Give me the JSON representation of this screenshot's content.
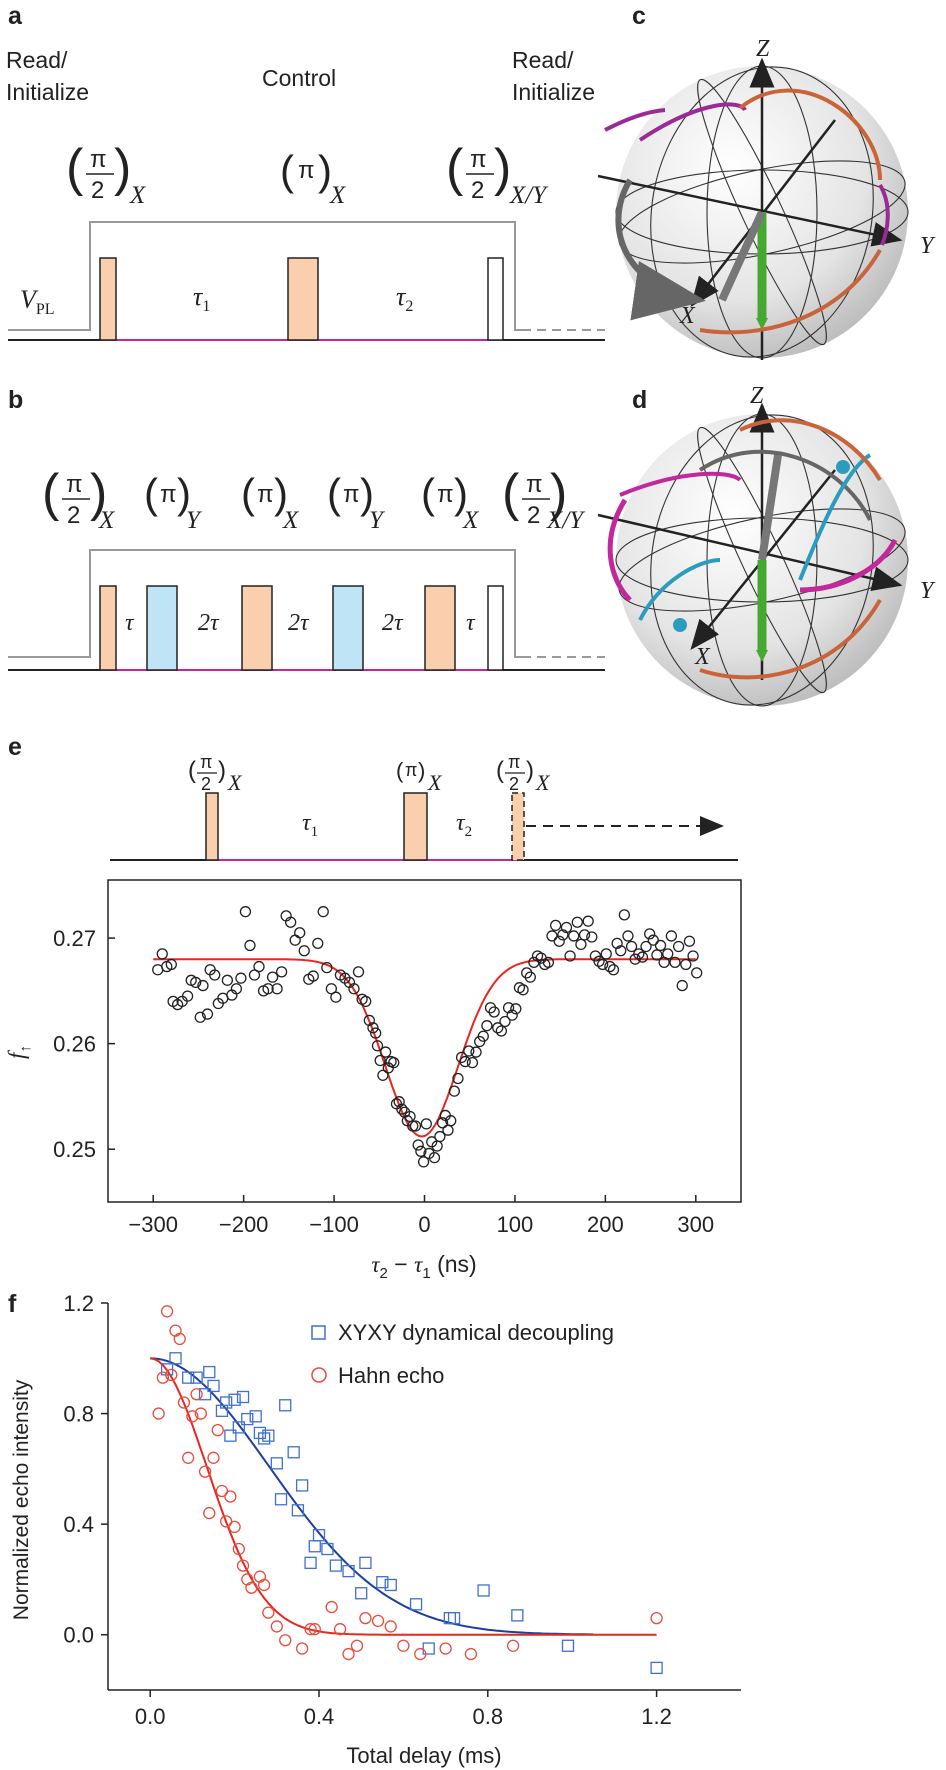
{
  "panels": {
    "a": "a",
    "b": "b",
    "c": "c",
    "d": "d",
    "e": "e",
    "f": "f"
  },
  "colors": {
    "pulse_x": "#f9cfae",
    "pulse_y": "#bfe4f5",
    "magenta": "#c2279c",
    "gray_line": "#999999",
    "fit_red": "#e8271f",
    "fit_blue": "#1c3f9f",
    "marker_blue": "#3f6fd0",
    "marker_red": "#e84c3c",
    "green": "#46a832",
    "orange": "#c9643a",
    "teal": "#2a9dbf",
    "purple": "#9a2a96"
  },
  "panel_a": {
    "read_left": [
      "Read/",
      "Initialize"
    ],
    "control": "Control",
    "read_right": [
      "Read/",
      "Initialize"
    ],
    "vpl": "V",
    "vpl_sub": "PL",
    "pulses": [
      {
        "num": "π",
        "den": "2",
        "axis": "X"
      },
      {
        "num": "π",
        "den": "",
        "axis": "X"
      },
      {
        "num": "π",
        "den": "2",
        "axis": "X/Y"
      }
    ],
    "tau1": "τ",
    "tau1_sub": "1",
    "tau2": "τ",
    "tau2_sub": "2"
  },
  "panel_b": {
    "pulses": [
      {
        "num": "π",
        "den": "2",
        "axis": "X"
      },
      {
        "num": "π",
        "den": "",
        "axis": "Y"
      },
      {
        "num": "π",
        "den": "",
        "axis": "X"
      },
      {
        "num": "π",
        "den": "",
        "axis": "Y"
      },
      {
        "num": "π",
        "den": "",
        "axis": "X"
      },
      {
        "num": "π",
        "den": "2",
        "axis": "X/Y"
      }
    ],
    "gaps": [
      "τ",
      "2τ",
      "2τ",
      "2τ",
      "τ"
    ]
  },
  "sphere": {
    "z": "Z",
    "y": "Y",
    "x": "X"
  },
  "panel_e": {
    "pulses": [
      {
        "num": "π",
        "den": "2",
        "axis": "X"
      },
      {
        "num": "π",
        "den": "",
        "axis": "X"
      },
      {
        "num": "π",
        "den": "2",
        "axis": "X"
      }
    ],
    "tau1": "τ",
    "tau1_sub": "1",
    "tau2": "τ",
    "tau2_sub": "2"
  },
  "chart_data": [
    {
      "id": "e",
      "type": "scatter",
      "xlabel": "τ2 − τ1 (ns)",
      "ylabel": "f↑",
      "xlim": [
        -350,
        350
      ],
      "ylim": [
        0.245,
        0.2755
      ],
      "xticks": [
        -300,
        -200,
        -100,
        0,
        100,
        200,
        300
      ],
      "xtick_labels": [
        "−300",
        "−200",
        "−100",
        "0",
        "100",
        "200",
        "300"
      ],
      "yticks": [
        0.25,
        0.26,
        0.27
      ],
      "ytick_labels": [
        "0.25",
        "0.26",
        "0.27"
      ],
      "points": [
        [
          -295,
          0.267
        ],
        [
          -290,
          0.2685
        ],
        [
          -285,
          0.2673
        ],
        [
          -280,
          0.2675
        ],
        [
          -278,
          0.264
        ],
        [
          -273,
          0.2637
        ],
        [
          -268,
          0.264
        ],
        [
          -262,
          0.2645
        ],
        [
          -258,
          0.266
        ],
        [
          -253,
          0.2658
        ],
        [
          -248,
          0.2625
        ],
        [
          -245,
          0.2655
        ],
        [
          -240,
          0.2628
        ],
        [
          -237,
          0.267
        ],
        [
          -232,
          0.2665
        ],
        [
          -228,
          0.2638
        ],
        [
          -223,
          0.2643
        ],
        [
          -218,
          0.266
        ],
        [
          -213,
          0.2646
        ],
        [
          -208,
          0.2652
        ],
        [
          -203,
          0.2662
        ],
        [
          -198,
          0.2725
        ],
        [
          -193,
          0.2693
        ],
        [
          -188,
          0.2665
        ],
        [
          -183,
          0.2673
        ],
        [
          -178,
          0.265
        ],
        [
          -173,
          0.2652
        ],
        [
          -168,
          0.2663
        ],
        [
          -163,
          0.2652
        ],
        [
          -158,
          0.2668
        ],
        [
          -153,
          0.2721
        ],
        [
          -148,
          0.2715
        ],
        [
          -143,
          0.2698
        ],
        [
          -138,
          0.2705
        ],
        [
          -133,
          0.2688
        ],
        [
          -128,
          0.2661
        ],
        [
          -123,
          0.2664
        ],
        [
          -118,
          0.2695
        ],
        [
          -112,
          0.2725
        ],
        [
          -108,
          0.2672
        ],
        [
          -103,
          0.2652
        ],
        [
          -98,
          0.2644
        ],
        [
          -93,
          0.2665
        ],
        [
          -88,
          0.2662
        ],
        [
          -83,
          0.2658
        ],
        [
          -78,
          0.2652
        ],
        [
          -73,
          0.2668
        ],
        [
          -69,
          0.2642
        ],
        [
          -65,
          0.264
        ],
        [
          -61,
          0.2622
        ],
        [
          -57,
          0.2615
        ],
        [
          -54,
          0.261
        ],
        [
          -52,
          0.2598
        ],
        [
          -49,
          0.2584
        ],
        [
          -46,
          0.257
        ],
        [
          -43,
          0.2592
        ],
        [
          -40,
          0.2577
        ],
        [
          -37,
          0.2583
        ],
        [
          -34,
          0.2582
        ],
        [
          -31,
          0.2543
        ],
        [
          -28,
          0.2545
        ],
        [
          -25,
          0.2538
        ],
        [
          -22,
          0.2535
        ],
        [
          -19,
          0.2527
        ],
        [
          -16,
          0.2531
        ],
        [
          -13,
          0.2522
        ],
        [
          -10,
          0.2522
        ],
        [
          -7,
          0.2504
        ],
        [
          -4,
          0.2498
        ],
        [
          -1,
          0.2488
        ],
        [
          2,
          0.2524
        ],
        [
          5,
          0.2496
        ],
        [
          8,
          0.2507
        ],
        [
          11,
          0.2492
        ],
        [
          14,
          0.2503
        ],
        [
          17,
          0.2512
        ],
        [
          20,
          0.2525
        ],
        [
          23,
          0.2532
        ],
        [
          26,
          0.2518
        ],
        [
          29,
          0.2527
        ],
        [
          33,
          0.2555
        ],
        [
          37,
          0.2567
        ],
        [
          41,
          0.2587
        ],
        [
          45,
          0.2583
        ],
        [
          49,
          0.2593
        ],
        [
          53,
          0.2582
        ],
        [
          57,
          0.2592
        ],
        [
          61,
          0.2602
        ],
        [
          65,
          0.2607
        ],
        [
          69,
          0.2617
        ],
        [
          73,
          0.2634
        ],
        [
          77,
          0.263
        ],
        [
          81,
          0.2615
        ],
        [
          85,
          0.2612
        ],
        [
          89,
          0.2621
        ],
        [
          93,
          0.2634
        ],
        [
          97,
          0.2627
        ],
        [
          101,
          0.2633
        ],
        [
          105,
          0.2653
        ],
        [
          109,
          0.2651
        ],
        [
          113,
          0.2667
        ],
        [
          117,
          0.2663
        ],
        [
          121,
          0.2677
        ],
        [
          125,
          0.2683
        ],
        [
          129,
          0.2681
        ],
        [
          133,
          0.2675
        ],
        [
          137,
          0.2677
        ],
        [
          141,
          0.2702
        ],
        [
          145,
          0.2712
        ],
        [
          149,
          0.2697
        ],
        [
          153,
          0.2703
        ],
        [
          157,
          0.271
        ],
        [
          161,
          0.2683
        ],
        [
          165,
          0.2702
        ],
        [
          169,
          0.2715
        ],
        [
          173,
          0.2694
        ],
        [
          177,
          0.2703
        ],
        [
          181,
          0.2716
        ],
        [
          185,
          0.2701
        ],
        [
          189,
          0.2683
        ],
        [
          193,
          0.2678
        ],
        [
          197,
          0.2675
        ],
        [
          201,
          0.2685
        ],
        [
          205,
          0.2673
        ],
        [
          209,
          0.267
        ],
        [
          213,
          0.2695
        ],
        [
          217,
          0.2688
        ],
        [
          221,
          0.2722
        ],
        [
          225,
          0.2702
        ],
        [
          229,
          0.2692
        ],
        [
          233,
          0.268
        ],
        [
          237,
          0.2685
        ],
        [
          241,
          0.2682
        ],
        [
          245,
          0.2692
        ],
        [
          249,
          0.2704
        ],
        [
          253,
          0.2698
        ],
        [
          257,
          0.2684
        ],
        [
          261,
          0.2693
        ],
        [
          265,
          0.2677
        ],
        [
          269,
          0.2685
        ],
        [
          273,
          0.2702
        ],
        [
          277,
          0.2677
        ],
        [
          281,
          0.2692
        ],
        [
          285,
          0.2655
        ],
        [
          289,
          0.2675
        ],
        [
          293,
          0.2697
        ],
        [
          297,
          0.2683
        ],
        [
          301,
          0.2667
        ]
      ],
      "fit": {
        "baseline": 0.268,
        "depth": 0.0168,
        "center": -3,
        "sigma": 40,
        "x_range": [
          -300,
          300
        ]
      }
    },
    {
      "id": "f",
      "type": "scatter",
      "xlabel": "Total delay (ms)",
      "ylabel": "Normalized echo intensity",
      "xlim": [
        -0.1,
        1.4
      ],
      "ylim": [
        -0.2,
        1.2
      ],
      "xticks": [
        0.0,
        0.4,
        0.8,
        1.2
      ],
      "xtick_labels": [
        "0.0",
        "0.4",
        "0.8",
        "1.2"
      ],
      "yticks": [
        0.0,
        0.4,
        0.8,
        1.2
      ],
      "ytick_labels": [
        "0.0",
        "0.4",
        "0.8",
        "1.2"
      ],
      "series": [
        {
          "name": "XYXY dynamical decoupling",
          "marker": "square",
          "points": [
            [
              0.04,
              0.96
            ],
            [
              0.06,
              1.0
            ],
            [
              0.09,
              0.93
            ],
            [
              0.11,
              0.93
            ],
            [
              0.13,
              0.87
            ],
            [
              0.14,
              0.95
            ],
            [
              0.15,
              0.9
            ],
            [
              0.17,
              0.81
            ],
            [
              0.18,
              0.84
            ],
            [
              0.19,
              0.72
            ],
            [
              0.2,
              0.85
            ],
            [
              0.21,
              0.75
            ],
            [
              0.22,
              0.86
            ],
            [
              0.23,
              0.78
            ],
            [
              0.25,
              0.79
            ],
            [
              0.26,
              0.73
            ],
            [
              0.27,
              0.71
            ],
            [
              0.28,
              0.72
            ],
            [
              0.3,
              0.62
            ],
            [
              0.31,
              0.49
            ],
            [
              0.32,
              0.83
            ],
            [
              0.34,
              0.66
            ],
            [
              0.35,
              0.45
            ],
            [
              0.36,
              0.54
            ],
            [
              0.38,
              0.26
            ],
            [
              0.39,
              0.32
            ],
            [
              0.4,
              0.36
            ],
            [
              0.42,
              0.31
            ],
            [
              0.44,
              0.25
            ],
            [
              0.47,
              0.23
            ],
            [
              0.5,
              0.15
            ],
            [
              0.51,
              0.26
            ],
            [
              0.55,
              0.19
            ],
            [
              0.57,
              0.18
            ],
            [
              0.63,
              0.11
            ],
            [
              0.66,
              -0.05
            ],
            [
              0.71,
              0.06
            ],
            [
              0.72,
              0.06
            ],
            [
              0.79,
              0.16
            ],
            [
              0.87,
              0.07
            ],
            [
              0.99,
              -0.04
            ],
            [
              1.2,
              -0.12
            ]
          ]
        },
        {
          "name": "Hahn echo",
          "marker": "circle",
          "points": [
            [
              0.02,
              0.8
            ],
            [
              0.03,
              0.93
            ],
            [
              0.04,
              1.17
            ],
            [
              0.05,
              0.94
            ],
            [
              0.06,
              1.1
            ],
            [
              0.07,
              1.07
            ],
            [
              0.08,
              0.84
            ],
            [
              0.09,
              0.64
            ],
            [
              0.1,
              0.79
            ],
            [
              0.11,
              0.87
            ],
            [
              0.12,
              0.8
            ],
            [
              0.13,
              0.59
            ],
            [
              0.14,
              0.44
            ],
            [
              0.15,
              0.64
            ],
            [
              0.16,
              0.74
            ],
            [
              0.17,
              0.52
            ],
            [
              0.18,
              0.41
            ],
            [
              0.19,
              0.5
            ],
            [
              0.2,
              0.39
            ],
            [
              0.21,
              0.31
            ],
            [
              0.22,
              0.25
            ],
            [
              0.23,
              0.2
            ],
            [
              0.24,
              0.17
            ],
            [
              0.26,
              0.21
            ],
            [
              0.27,
              0.18
            ],
            [
              0.28,
              0.08
            ],
            [
              0.3,
              0.03
            ],
            [
              0.32,
              -0.02
            ],
            [
              0.36,
              -0.05
            ],
            [
              0.38,
              0.02
            ],
            [
              0.39,
              0.02
            ],
            [
              0.43,
              0.1
            ],
            [
              0.45,
              0.02
            ],
            [
              0.47,
              -0.07
            ],
            [
              0.49,
              -0.04
            ],
            [
              0.51,
              0.06
            ],
            [
              0.54,
              0.05
            ],
            [
              0.57,
              0.03
            ],
            [
              0.6,
              -0.04
            ],
            [
              0.64,
              -0.07
            ],
            [
              0.7,
              -0.05
            ],
            [
              0.76,
              -0.07
            ],
            [
              0.86,
              -0.04
            ],
            [
              1.2,
              0.06
            ]
          ]
        }
      ],
      "fits": [
        {
          "series": "XYXY dynamical decoupling",
          "t2": 0.4,
          "n": 2,
          "x_range": [
            0.0,
            1.05
          ]
        },
        {
          "series": "Hahn echo",
          "t2": 0.19,
          "n": 2,
          "x_range": [
            0.0,
            1.2
          ]
        }
      ]
    }
  ]
}
